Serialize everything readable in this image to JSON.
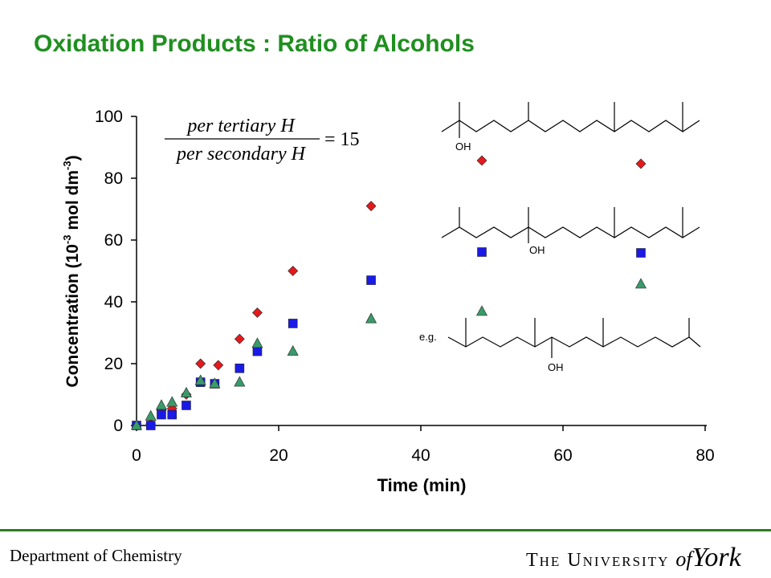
{
  "header": {
    "title": "Oxidation Products : Ratio of Alcohols"
  },
  "formula": {
    "numerator": "per tertiary H",
    "denominator": "per secondary H",
    "value": "= 15"
  },
  "chart_data": {
    "type": "scatter",
    "xlabel": "Time (min)",
    "ylabel_main": "Concentration (10",
    "ylabel_exp": "-3",
    "ylabel_unit": " mol dm",
    "ylabel_exp2": "-3",
    "ylabel_close": ")",
    "xlim": [
      0,
      80
    ],
    "ylim": [
      0,
      100
    ],
    "xticks": [
      "0",
      "20",
      "40",
      "60",
      "80"
    ],
    "yticks": [
      "0",
      "20",
      "40",
      "60",
      "80",
      "100"
    ],
    "grid": false,
    "series": [
      {
        "marker": "diamond",
        "color": "#e31a1c",
        "x": [
          0,
          2,
          3.5,
          5,
          7,
          9,
          11.5,
          14.5,
          17,
          22,
          33
        ],
        "y": [
          0,
          0.5,
          5,
          5.5,
          10,
          20,
          19.5,
          28,
          36.5,
          50,
          71
        ]
      },
      {
        "marker": "square",
        "color": "#1a1ae6",
        "x": [
          0,
          2,
          3.5,
          5,
          7,
          9,
          11,
          14.5,
          17,
          22,
          33
        ],
        "y": [
          0,
          0,
          3.5,
          3.5,
          6.5,
          14,
          13.5,
          18.5,
          24,
          33,
          47
        ]
      },
      {
        "marker": "triangle",
        "color": "#3a9a6a",
        "x": [
          0,
          2,
          3.5,
          5,
          7,
          9,
          11,
          14.5,
          17,
          22,
          33
        ],
        "y": [
          0,
          3,
          6.5,
          7.5,
          10.5,
          14.5,
          13.5,
          14,
          26.5,
          24,
          34.5
        ]
      }
    ]
  },
  "legend": {
    "oh_label": "OH",
    "eg_label": "e.g.",
    "entries": [
      {
        "marker": "diamond",
        "color": "#e31a1c",
        "structure": "tertiary-end"
      },
      {
        "marker": "square",
        "color": "#1a1ae6",
        "structure": "tertiary-mid"
      },
      {
        "marker": "triangle",
        "color": "#3a9a6a",
        "structure": "secondary"
      }
    ]
  },
  "footer": {
    "department": "Department of Chemistry",
    "university_prefix": "The University",
    "university_of": "of",
    "university_name": "York"
  }
}
